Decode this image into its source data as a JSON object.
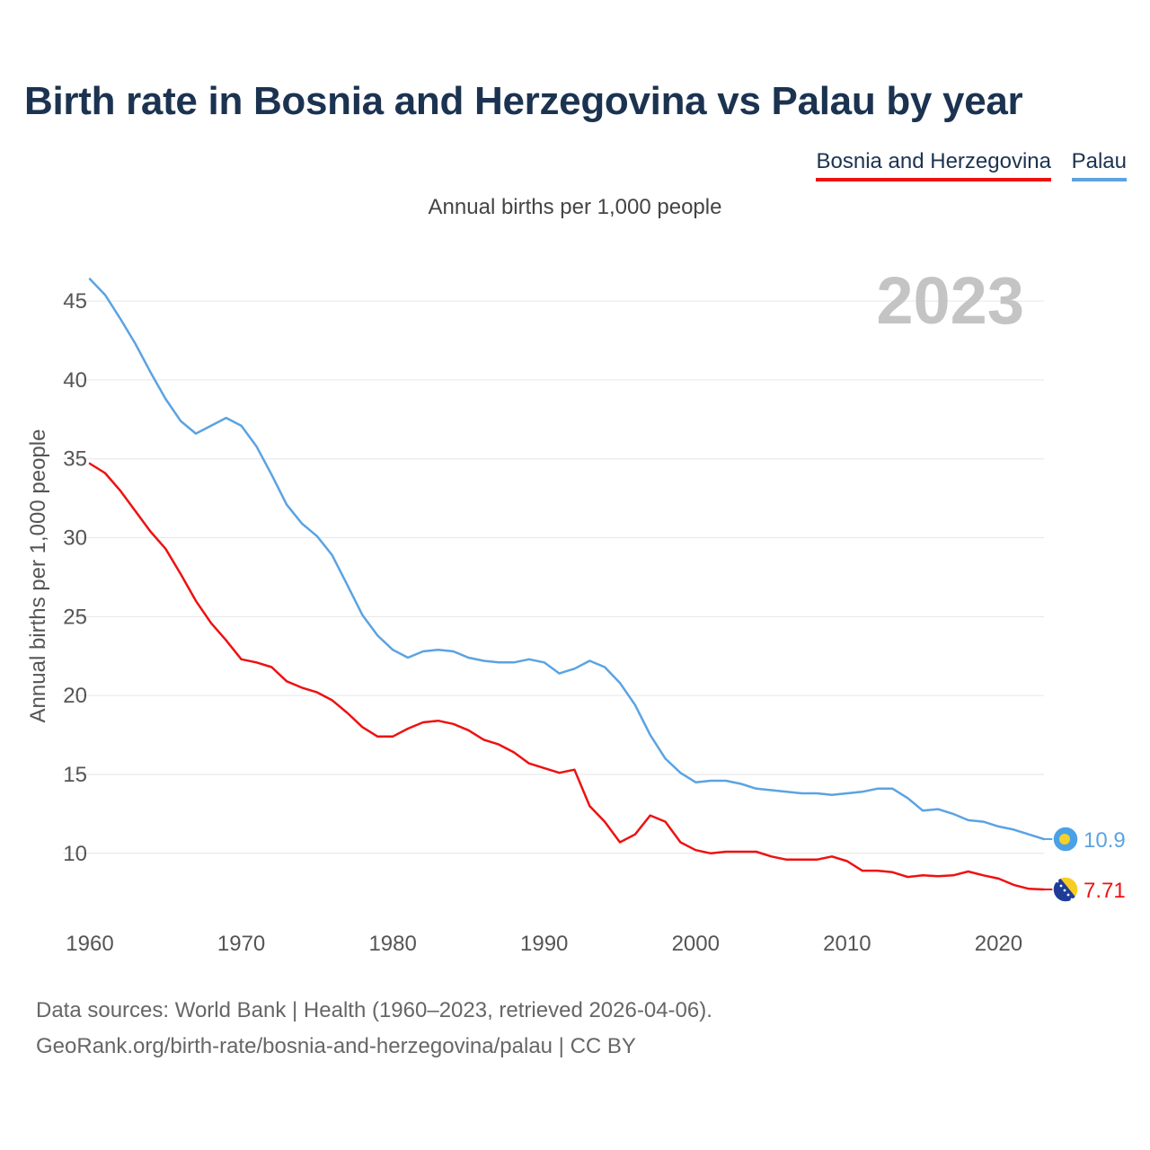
{
  "title": "Birth rate in Bosnia and Herzegovina vs Palau by year",
  "subtitle": "Annual births per 1,000 people",
  "legend": [
    {
      "name": "Bosnia and Herzegovina",
      "color": "#ee1111"
    },
    {
      "name": "Palau",
      "color": "#5ba3e2"
    }
  ],
  "chart_data": {
    "type": "line",
    "title": "Birth rate in Bosnia and Herzegovina vs Palau by year",
    "ylabel": "Annual births per 1,000 people",
    "xlabel": "",
    "year_label": "2023",
    "xlim": [
      1960,
      2023
    ],
    "ylim": [
      6,
      47
    ],
    "y_ticks": [
      10,
      15,
      20,
      25,
      30,
      35,
      40,
      45
    ],
    "x_ticks": [
      1960,
      1970,
      1980,
      1990,
      2000,
      2010,
      2020
    ],
    "grid": true,
    "x": [
      1960,
      1961,
      1962,
      1963,
      1964,
      1965,
      1966,
      1967,
      1968,
      1969,
      1970,
      1971,
      1972,
      1973,
      1974,
      1975,
      1976,
      1977,
      1978,
      1979,
      1980,
      1981,
      1982,
      1983,
      1984,
      1985,
      1986,
      1987,
      1988,
      1989,
      1990,
      1991,
      1992,
      1993,
      1994,
      1995,
      1996,
      1997,
      1998,
      1999,
      2000,
      2001,
      2002,
      2003,
      2004,
      2005,
      2006,
      2007,
      2008,
      2009,
      2010,
      2011,
      2012,
      2013,
      2014,
      2015,
      2016,
      2017,
      2018,
      2019,
      2020,
      2021,
      2022,
      2023
    ],
    "series": [
      {
        "name": "Bosnia and Herzegovina",
        "color": "#ee1111",
        "end_label": "7.71",
        "values": [
          34.7,
          34.1,
          33.0,
          31.7,
          30.4,
          29.3,
          27.7,
          26.0,
          24.6,
          23.5,
          22.3,
          22.1,
          21.8,
          20.9,
          20.5,
          20.2,
          19.7,
          18.9,
          18.0,
          17.4,
          17.4,
          17.9,
          18.3,
          18.4,
          18.2,
          17.8,
          17.2,
          16.9,
          16.4,
          15.7,
          15.4,
          15.1,
          15.3,
          13.0,
          12.0,
          10.7,
          11.2,
          12.4,
          12.0,
          10.7,
          10.2,
          10.0,
          10.1,
          10.1,
          10.1,
          9.8,
          9.6,
          9.6,
          9.6,
          9.8,
          9.5,
          8.9,
          8.9,
          8.8,
          8.5,
          8.6,
          8.55,
          8.6,
          8.85,
          8.6,
          8.4,
          8.0,
          7.75,
          7.71
        ]
      },
      {
        "name": "Palau",
        "color": "#5ba3e2",
        "end_label": "10.9",
        "values": [
          46.4,
          45.4,
          43.9,
          42.3,
          40.5,
          38.8,
          37.4,
          36.6,
          37.1,
          37.6,
          37.1,
          35.8,
          34.0,
          32.1,
          30.9,
          30.1,
          28.9,
          27.0,
          25.1,
          23.8,
          22.9,
          22.4,
          22.8,
          22.9,
          22.8,
          22.4,
          22.2,
          22.1,
          22.1,
          22.3,
          22.1,
          21.4,
          21.7,
          22.2,
          21.8,
          20.8,
          19.4,
          17.5,
          16.0,
          15.1,
          14.5,
          14.6,
          14.6,
          14.4,
          14.1,
          14.0,
          13.9,
          13.8,
          13.8,
          13.7,
          13.8,
          13.9,
          14.1,
          14.1,
          13.5,
          12.7,
          12.8,
          12.5,
          12.1,
          12.0,
          11.7,
          11.5,
          11.2,
          10.9
        ]
      }
    ]
  },
  "footer": {
    "line1": "Data sources: World Bank | Health (1960–2023, retrieved 2026-04-06).",
    "line2": "GeoRank.org/birth-rate/bosnia-and-herzegovina/palau | CC BY"
  }
}
